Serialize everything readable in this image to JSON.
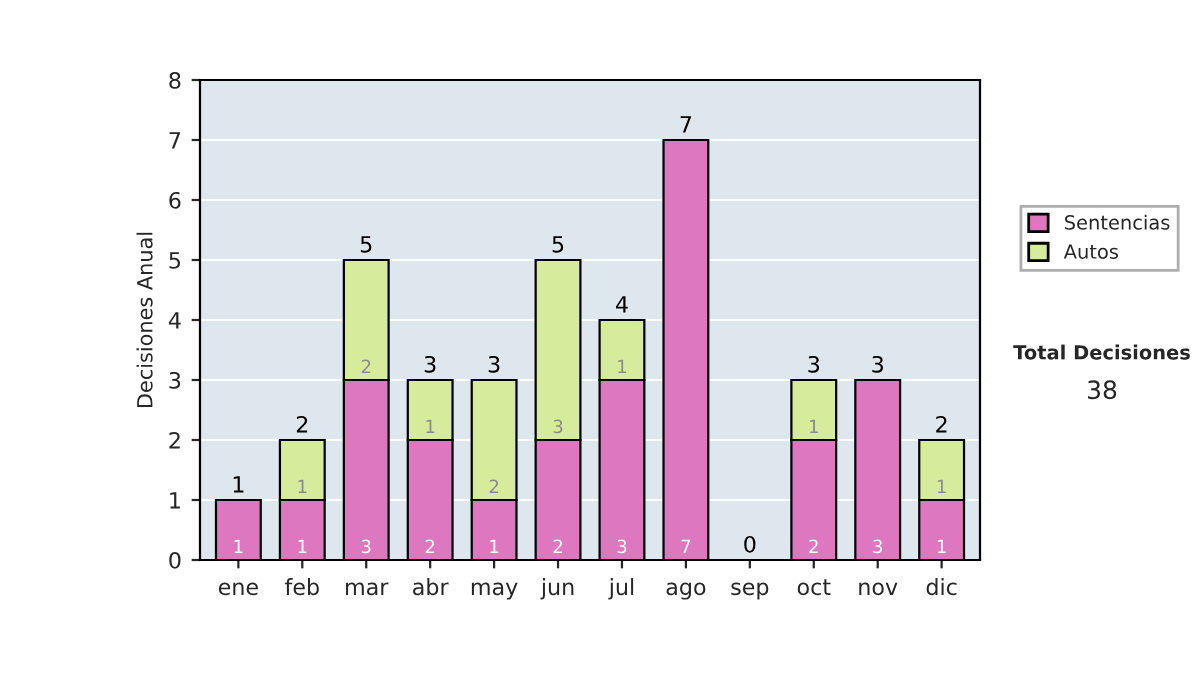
{
  "chart_data": {
    "type": "bar",
    "stacked": true,
    "ylabel": "Decisiones Anual",
    "categories": [
      "ene",
      "feb",
      "mar",
      "abr",
      "may",
      "jun",
      "jul",
      "ago",
      "sep",
      "oct",
      "nov",
      "dic"
    ],
    "series": [
      {
        "name": "Sentencias",
        "color": "#dd77c0",
        "values": [
          1,
          1,
          3,
          2,
          1,
          2,
          3,
          7,
          0,
          2,
          3,
          1
        ],
        "value_labels": [
          "1",
          "1",
          "3",
          "2",
          "1",
          "2",
          "3",
          "7",
          null,
          "2",
          "3",
          "1"
        ]
      },
      {
        "name": "Autos",
        "color": "#d6eb9c",
        "values": [
          0,
          1,
          2,
          1,
          2,
          3,
          1,
          0,
          0,
          1,
          0,
          1
        ],
        "value_labels": [
          null,
          "1",
          "2",
          "1",
          "2",
          "3",
          "1",
          null,
          null,
          "1",
          null,
          "1"
        ]
      }
    ],
    "totals": [
      "1",
      "2",
      "5",
      "3",
      "3",
      "5",
      "4",
      "7",
      "0",
      "3",
      "3",
      "2"
    ],
    "ylim": [
      0,
      8
    ],
    "yticks": [
      0,
      1,
      2,
      3,
      4,
      5,
      6,
      7,
      8
    ],
    "grid": "y",
    "legend": "right",
    "annotations": [
      "Total Decisiones",
      "38"
    ]
  }
}
